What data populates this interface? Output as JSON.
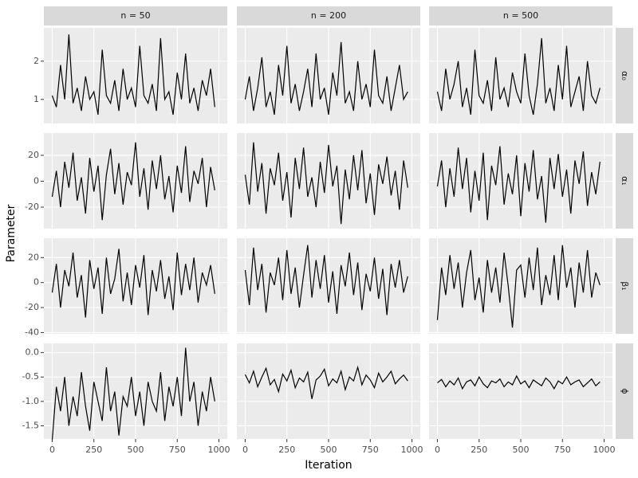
{
  "chart_data": {
    "type": "line",
    "x_label": "Iteration",
    "y_label": "Parameter",
    "color": "#000000",
    "grid": true,
    "columns": [
      "n = 50",
      "n = 200",
      "n = 500"
    ],
    "x": [
      0,
      25,
      50,
      75,
      100,
      125,
      150,
      175,
      200,
      225,
      250,
      275,
      300,
      325,
      350,
      375,
      400,
      425,
      450,
      475,
      500,
      525,
      550,
      575,
      600,
      625,
      650,
      675,
      700,
      725,
      750,
      775,
      800,
      825,
      850,
      875,
      900,
      925,
      950,
      975
    ],
    "xlim": [
      -50,
      1050
    ],
    "xticks": [
      0,
      250,
      500,
      750,
      1000
    ],
    "rows": [
      {
        "label": "α₀",
        "ylim": [
          0.37,
          2.87
        ],
        "yticks": [
          1,
          2
        ],
        "panels": [
          [
            1.1,
            0.8,
            1.9,
            1.0,
            2.7,
            0.9,
            1.3,
            0.7,
            1.6,
            1.0,
            1.2,
            0.6,
            2.3,
            1.1,
            0.9,
            1.5,
            0.7,
            1.8,
            1.0,
            1.3,
            0.8,
            2.4,
            1.1,
            0.9,
            1.4,
            0.7,
            2.6,
            1.0,
            1.2,
            0.6,
            1.7,
            1.0,
            2.2,
            0.9,
            1.3,
            0.7,
            1.5,
            1.1,
            1.8,
            0.8
          ],
          [
            1.0,
            1.6,
            0.7,
            1.3,
            2.1,
            0.8,
            1.2,
            0.6,
            1.9,
            1.1,
            2.4,
            0.9,
            1.4,
            0.7,
            1.2,
            1.8,
            0.8,
            2.2,
            1.0,
            1.3,
            0.6,
            1.7,
            1.1,
            2.5,
            0.9,
            1.2,
            0.7,
            2.0,
            1.0,
            1.4,
            0.8,
            2.3,
            1.1,
            0.9,
            1.6,
            0.7,
            1.3,
            1.9,
            1.0,
            1.2
          ],
          [
            1.2,
            0.7,
            1.8,
            1.0,
            1.4,
            2.0,
            0.8,
            1.3,
            0.6,
            2.3,
            1.1,
            0.9,
            1.5,
            0.7,
            2.1,
            1.0,
            1.3,
            0.8,
            1.7,
            1.2,
            0.9,
            2.2,
            1.1,
            0.6,
            1.4,
            2.6,
            0.9,
            1.3,
            0.7,
            1.9,
            1.0,
            2.4,
            0.8,
            1.2,
            1.6,
            0.7,
            2.0,
            1.1,
            0.9,
            1.3
          ]
        ]
      },
      {
        "label": "α₁",
        "ylim": [
          -36.6,
          37.2
        ],
        "yticks": [
          -20,
          0,
          20
        ],
        "panels": [
          [
            -12,
            8,
            -20,
            15,
            -5,
            22,
            -15,
            3,
            -25,
            18,
            -8,
            12,
            -30,
            5,
            25,
            -10,
            14,
            -18,
            7,
            -3,
            30,
            -12,
            10,
            -22,
            16,
            -6,
            20,
            -14,
            4,
            -24,
            12,
            -9,
            27,
            -16,
            8,
            -2,
            18,
            -20,
            11,
            -7
          ],
          [
            5,
            -18,
            30,
            -8,
            14,
            -25,
            10,
            -3,
            22,
            -15,
            7,
            -28,
            18,
            -6,
            26,
            -12,
            3,
            -20,
            15,
            -9,
            28,
            -4,
            12,
            -33,
            9,
            -14,
            20,
            -7,
            24,
            -17,
            6,
            -26,
            13,
            -2,
            19,
            -11,
            8,
            -22,
            16,
            -5
          ],
          [
            -4,
            16,
            -20,
            10,
            -12,
            26,
            -6,
            18,
            -24,
            8,
            -15,
            22,
            -30,
            12,
            -3,
            27,
            -18,
            6,
            -10,
            20,
            -27,
            14,
            -8,
            24,
            -14,
            4,
            -32,
            18,
            -6,
            21,
            -12,
            9,
            -25,
            16,
            -2,
            23,
            -19,
            7,
            -10,
            15
          ]
        ]
      },
      {
        "label": "β₁",
        "ylim": [
          -41,
          35.5
        ],
        "yticks": [
          -40,
          -20,
          0,
          20
        ],
        "panels": [
          [
            -8,
            15,
            -20,
            10,
            -3,
            24,
            -12,
            6,
            -28,
            18,
            -5,
            12,
            -25,
            20,
            -9,
            3,
            27,
            -15,
            8,
            -18,
            14,
            -4,
            22,
            -26,
            10,
            -7,
            18,
            -13,
            5,
            -22,
            24,
            -10,
            15,
            -6,
            20,
            -16,
            8,
            -2,
            14,
            -9
          ],
          [
            10,
            -18,
            28,
            -6,
            15,
            -24,
            8,
            -2,
            20,
            -14,
            26,
            -9,
            12,
            -20,
            6,
            30,
            -12,
            18,
            -5,
            22,
            -16,
            9,
            -25,
            14,
            -3,
            24,
            -10,
            16,
            -22,
            7,
            -7,
            20,
            -13,
            11,
            -26,
            15,
            -4,
            18,
            -8,
            5
          ],
          [
            -30,
            12,
            -10,
            22,
            -5,
            16,
            -20,
            8,
            26,
            -14,
            4,
            -24,
            18,
            -8,
            12,
            -16,
            24,
            -3,
            -36,
            10,
            14,
            -12,
            20,
            -6,
            28,
            -18,
            6,
            -10,
            22,
            -14,
            30,
            -4,
            12,
            -20,
            16,
            -8,
            26,
            -12,
            8,
            -2
          ]
        ]
      },
      {
        "label": "ϕ",
        "ylim": [
          -1.77,
          0.19
        ],
        "yticks": [
          {
            "value": 0,
            "label": "0.0"
          },
          -0.5,
          {
            "value": -1,
            "label": "-1.0"
          },
          -1.5
        ],
        "panels": [
          [
            -1.8,
            -0.7,
            -1.2,
            -0.5,
            -1.5,
            -0.9,
            -1.3,
            -0.4,
            -1.1,
            -1.6,
            -0.6,
            -1.0,
            -1.4,
            -0.3,
            -1.2,
            -0.8,
            -1.7,
            -0.9,
            -1.1,
            -0.5,
            -1.3,
            -0.8,
            -1.5,
            -0.6,
            -1.0,
            -1.2,
            -0.4,
            -1.4,
            -0.7,
            -1.1,
            -0.5,
            -1.3,
            0.1,
            -1.0,
            -0.6,
            -1.5,
            -0.8,
            -1.2,
            -0.5,
            -1.0
          ],
          [
            -0.45,
            -0.62,
            -0.38,
            -0.7,
            -0.5,
            -0.32,
            -0.66,
            -0.55,
            -0.8,
            -0.44,
            -0.58,
            -0.36,
            -0.72,
            -0.52,
            -0.6,
            -0.4,
            -0.95,
            -0.56,
            -0.48,
            -0.34,
            -0.68,
            -0.54,
            -0.62,
            -0.38,
            -0.76,
            -0.5,
            -0.58,
            -0.3,
            -0.66,
            -0.46,
            -0.56,
            -0.72,
            -0.42,
            -0.6,
            -0.5,
            -0.38,
            -0.64,
            -0.54,
            -0.46,
            -0.58
          ],
          [
            -0.62,
            -0.55,
            -0.7,
            -0.58,
            -0.66,
            -0.52,
            -0.74,
            -0.6,
            -0.56,
            -0.68,
            -0.5,
            -0.64,
            -0.72,
            -0.58,
            -0.62,
            -0.54,
            -0.7,
            -0.6,
            -0.66,
            -0.48,
            -0.64,
            -0.58,
            -0.72,
            -0.56,
            -0.62,
            -0.68,
            -0.52,
            -0.6,
            -0.74,
            -0.58,
            -0.64,
            -0.5,
            -0.66,
            -0.6,
            -0.56,
            -0.7,
            -0.62,
            -0.54,
            -0.68,
            -0.6
          ]
        ]
      }
    ]
  }
}
